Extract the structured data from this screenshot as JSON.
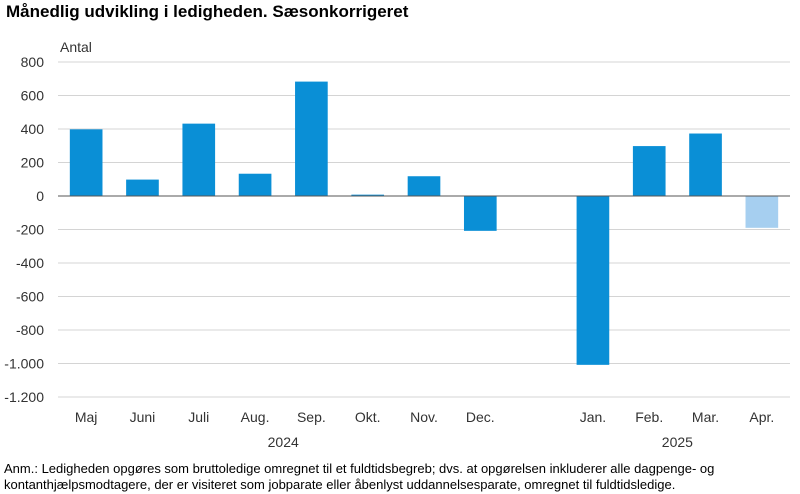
{
  "title": "Månedlig udvikling i ledigheden. Sæsonkorrigeret",
  "note": "Anm.: Ledigheden opgøres som bruttoledige omregnet til et fuldtidsbegreb; dvs. at opgørelsen inkluderer alle dagpenge- og kontanthjælpsmodtagere, der er visiteret som jobparate eller åbenlyst uddannelsesparate, omregnet til fuldtidsledige.",
  "chart_data": {
    "type": "bar",
    "title": "Månedlig udvikling i ledigheden. Sæsonkorrigeret",
    "ylabel": "Antal",
    "xlabel": "",
    "ylim": [
      -1200,
      800
    ],
    "yticks": [
      800,
      600,
      400,
      200,
      0,
      -200,
      -400,
      -600,
      -800,
      -1000,
      -1200
    ],
    "ytick_labels": [
      "800",
      "600",
      "400",
      "200",
      "0",
      "-200",
      "-400",
      "-600",
      "-800",
      "-1.000",
      "-1.200"
    ],
    "grid": true,
    "categories": [
      "Maj",
      "Juni",
      "Juli",
      "Aug.",
      "Sep.",
      "Okt.",
      "Nov.",
      "Dec.",
      "",
      "Jan.",
      "Feb.",
      "Mar.",
      "Apr."
    ],
    "values": [
      398,
      98,
      432,
      133,
      683,
      8,
      118,
      -208,
      null,
      -1008,
      298,
      373,
      -190
    ],
    "bar_colors": [
      "#0a8fd6",
      "#0a8fd6",
      "#0a8fd6",
      "#0a8fd6",
      "#0a8fd6",
      "#0a8fd6",
      "#0a8fd6",
      "#0a8fd6",
      "#0a8fd6",
      "#0a8fd6",
      "#0a8fd6",
      "#0a8fd6",
      "#a6cff0"
    ],
    "year_labels": [
      {
        "label": "2024",
        "from": 0,
        "to": 7
      },
      {
        "label": "2025",
        "from": 9,
        "to": 12
      }
    ]
  }
}
